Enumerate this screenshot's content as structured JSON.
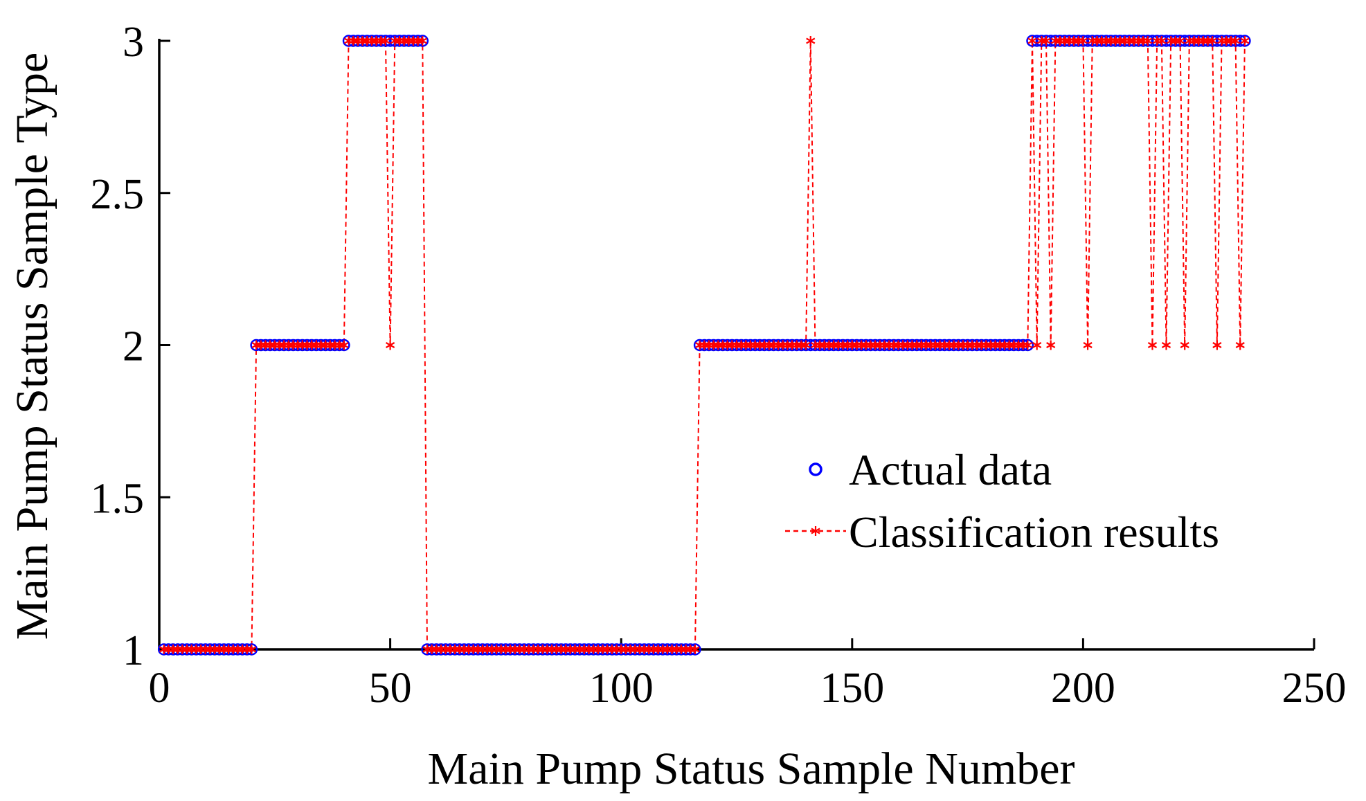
{
  "chart_data": {
    "type": "scatter",
    "title": "",
    "xlabel": "Main Pump Status Sample Number",
    "ylabel": "Main Pump Status Sample Type",
    "xlim": [
      0,
      250
    ],
    "ylim": [
      1,
      3
    ],
    "xticks": [
      0,
      50,
      100,
      150,
      200,
      250
    ],
    "yticks": [
      1,
      1.5,
      2,
      2.5,
      3
    ],
    "xtick_labels": [
      "0",
      "50",
      "100",
      "150",
      "200",
      "250"
    ],
    "ytick_labels": [
      "1",
      "1.5",
      "2",
      "2.5",
      "3"
    ],
    "grid": false,
    "legend_position": "center-right",
    "segments_note": "Actual class per sample index: 1-20 -> 1, 21-40 -> 2, 41-57 -> 3, 58-116 -> 1, 117-188 -> 2, 189-235 -> 3",
    "actual_segments": [
      {
        "from": 1,
        "to": 20,
        "value": 1
      },
      {
        "from": 21,
        "to": 40,
        "value": 2
      },
      {
        "from": 41,
        "to": 57,
        "value": 3
      },
      {
        "from": 58,
        "to": 116,
        "value": 1
      },
      {
        "from": 117,
        "to": 188,
        "value": 2
      },
      {
        "from": 189,
        "to": 235,
        "value": 3
      }
    ],
    "misclassified": [
      {
        "x": 50,
        "actual": 3,
        "predicted": 2
      },
      {
        "x": 141,
        "actual": 2,
        "predicted": 3
      },
      {
        "x": 190,
        "actual": 3,
        "predicted": 2
      },
      {
        "x": 193,
        "actual": 3,
        "predicted": 2
      },
      {
        "x": 201,
        "actual": 3,
        "predicted": 2
      },
      {
        "x": 215,
        "actual": 3,
        "predicted": 2
      },
      {
        "x": 218,
        "actual": 3,
        "predicted": 2
      },
      {
        "x": 222,
        "actual": 3,
        "predicted": 2
      },
      {
        "x": 229,
        "actual": 3,
        "predicted": 2
      },
      {
        "x": 234,
        "actual": 3,
        "predicted": 2
      }
    ],
    "series": [
      {
        "name": "Actual data",
        "style": "markers",
        "marker": "circle",
        "color": "#0000ff"
      },
      {
        "name": "Classification results",
        "style": "dashed-line-with-markers",
        "marker": "asterisk",
        "color": "#ff0000"
      }
    ]
  }
}
